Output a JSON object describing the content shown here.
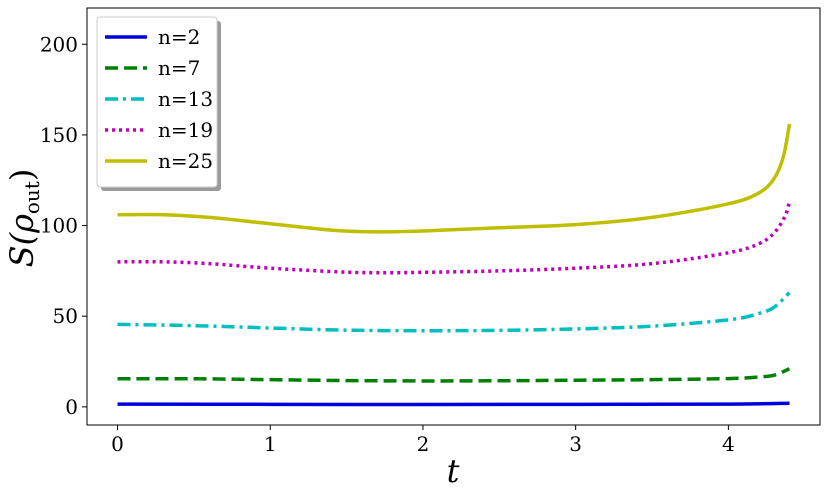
{
  "chart_data": {
    "type": "line",
    "xlabel": "t",
    "ylabel": "S(ρout)",
    "ylabel_main": "S(ρ",
    "ylabel_sub": "out",
    "ylabel_close": ")",
    "xlim": [
      -0.2,
      4.6
    ],
    "ylim": [
      -10,
      220
    ],
    "xticks": [
      0,
      1,
      2,
      3,
      4
    ],
    "yticks": [
      0,
      50,
      100,
      150,
      200
    ],
    "grid": false,
    "legend_position": "top-left",
    "series": [
      {
        "name": "n=2",
        "color": "#0000dd",
        "dash": "solid",
        "points": [
          [
            0,
            1.5
          ],
          [
            1,
            1.4
          ],
          [
            2,
            1.3
          ],
          [
            3,
            1.4
          ],
          [
            4,
            1.5
          ],
          [
            4.4,
            2.0
          ]
        ]
      },
      {
        "name": "n=7",
        "color": "#008000",
        "dash": "dashed",
        "points": [
          [
            0,
            15.5
          ],
          [
            0.5,
            15.5
          ],
          [
            1,
            15.0
          ],
          [
            1.5,
            14.5
          ],
          [
            2,
            14.3
          ],
          [
            2.5,
            14.4
          ],
          [
            3,
            14.7
          ],
          [
            3.5,
            15.0
          ],
          [
            4,
            15.6
          ],
          [
            4.2,
            16.5
          ],
          [
            4.3,
            17.5
          ],
          [
            4.4,
            21
          ]
        ]
      },
      {
        "name": "n=13",
        "color": "#00bfbf",
        "dash": "dashdot",
        "points": [
          [
            0,
            45.5
          ],
          [
            0.5,
            44.8
          ],
          [
            1,
            43.5
          ],
          [
            1.5,
            42.3
          ],
          [
            2,
            42.0
          ],
          [
            2.5,
            42.2
          ],
          [
            3,
            43.0
          ],
          [
            3.5,
            44.5
          ],
          [
            4,
            48
          ],
          [
            4.2,
            51.5
          ],
          [
            4.3,
            55
          ],
          [
            4.4,
            63
          ]
        ]
      },
      {
        "name": "n=19",
        "color": "#bf00bf",
        "dash": "dotted",
        "points": [
          [
            0,
            80
          ],
          [
            0.3,
            80
          ],
          [
            0.6,
            79
          ],
          [
            1,
            76.5
          ],
          [
            1.5,
            74.3
          ],
          [
            1.8,
            74.0
          ],
          [
            2,
            74.2
          ],
          [
            2.5,
            75
          ],
          [
            3,
            76.5
          ],
          [
            3.5,
            79
          ],
          [
            4,
            85
          ],
          [
            4.2,
            90
          ],
          [
            4.3,
            96
          ],
          [
            4.37,
            105
          ],
          [
            4.4,
            113
          ]
        ]
      },
      {
        "name": "n=25",
        "color": "#bfbf00",
        "dash": "solid",
        "points": [
          [
            0,
            106
          ],
          [
            0.3,
            106
          ],
          [
            0.6,
            104.5
          ],
          [
            1,
            101
          ],
          [
            1.4,
            97.5
          ],
          [
            1.7,
            96.5
          ],
          [
            2,
            97
          ],
          [
            2.5,
            98.8
          ],
          [
            3,
            100.5
          ],
          [
            3.5,
            104.5
          ],
          [
            4,
            112
          ],
          [
            4.2,
            118
          ],
          [
            4.3,
            126
          ],
          [
            4.36,
            138
          ],
          [
            4.4,
            156
          ]
        ]
      }
    ]
  }
}
